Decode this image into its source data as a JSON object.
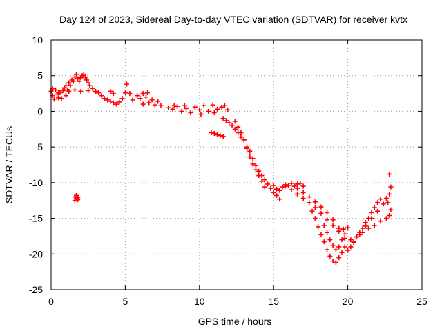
{
  "chart_data": {
    "type": "scatter",
    "title": "Day 124 of 2023, Sidereal Day-to-day VTEC variation (SDTVAR) for receiver kvtx",
    "xlabel": "GPS time / hours",
    "ylabel": "SDTVAR / TECUs",
    "xlim": [
      0,
      25
    ],
    "ylim": [
      -25,
      10
    ],
    "xticks": [
      0,
      5,
      10,
      15,
      20,
      25
    ],
    "yticks": [
      -25,
      -20,
      -15,
      -10,
      -5,
      0,
      5,
      10
    ],
    "xtick_labels": [
      "0",
      "5",
      "10",
      "15",
      "20",
      "25"
    ],
    "ytick_labels": [
      "-25",
      "-20",
      "-15",
      "-10",
      "-5",
      "0",
      "5",
      "10"
    ],
    "grid": true,
    "marker": "+",
    "color": "#ff0000",
    "series": [
      {
        "name": "SDTVAR",
        "points": [
          [
            0.0,
            2.8
          ],
          [
            0.1,
            2.2
          ],
          [
            0.2,
            1.7
          ],
          [
            0.3,
            3.0
          ],
          [
            0.4,
            2.4
          ],
          [
            0.5,
            1.9
          ],
          [
            0.6,
            2.6
          ],
          [
            0.7,
            1.8
          ],
          [
            0.8,
            2.9
          ],
          [
            0.9,
            3.3
          ],
          [
            1.0,
            3.6
          ],
          [
            1.1,
            3.0
          ],
          [
            1.2,
            4.0
          ],
          [
            1.3,
            3.6
          ],
          [
            1.4,
            4.4
          ],
          [
            1.5,
            4.2
          ],
          [
            1.6,
            4.8
          ],
          [
            1.7,
            5.2
          ],
          [
            1.8,
            4.6
          ],
          [
            1.9,
            4.2
          ],
          [
            2.0,
            4.7
          ],
          [
            2.1,
            5.0
          ],
          [
            2.2,
            5.2
          ],
          [
            2.3,
            4.8
          ],
          [
            2.4,
            4.4
          ],
          [
            2.5,
            4.0
          ],
          [
            2.6,
            3.6
          ],
          [
            2.8,
            3.2
          ],
          [
            3.0,
            2.8
          ],
          [
            3.2,
            2.6
          ],
          [
            3.4,
            2.2
          ],
          [
            3.6,
            1.8
          ],
          [
            3.8,
            1.6
          ],
          [
            4.0,
            1.4
          ],
          [
            4.2,
            1.2
          ],
          [
            4.4,
            1.0
          ],
          [
            4.6,
            1.3
          ],
          [
            4.8,
            1.8
          ],
          [
            5.0,
            2.6
          ],
          [
            5.1,
            3.8
          ],
          [
            5.3,
            2.5
          ],
          [
            5.5,
            1.6
          ],
          [
            5.8,
            2.2
          ],
          [
            6.0,
            1.8
          ],
          [
            6.2,
            2.5
          ],
          [
            6.4,
            2.0
          ],
          [
            6.6,
            1.2
          ],
          [
            6.8,
            1.6
          ],
          [
            7.0,
            0.9
          ],
          [
            7.2,
            1.4
          ],
          [
            7.4,
            0.8
          ],
          [
            2.0,
            2.8
          ],
          [
            2.5,
            2.9
          ],
          [
            3.0,
            2.7
          ],
          [
            4.0,
            2.8
          ],
          [
            4.2,
            2.5
          ],
          [
            0.1,
            3.2
          ],
          [
            0.5,
            2.6
          ],
          [
            1.0,
            2.2
          ],
          [
            1.2,
            2.8
          ],
          [
            1.6,
            3.0
          ],
          [
            6.5,
            2.6
          ],
          [
            6.2,
            1.0
          ],
          [
            7.9,
            0.5
          ],
          [
            8.2,
            0.3
          ],
          [
            8.5,
            0.7
          ],
          [
            8.8,
            0.0
          ],
          [
            9.1,
            0.4
          ],
          [
            9.4,
            -0.2
          ],
          [
            9.7,
            0.6
          ],
          [
            10.0,
            0.2
          ],
          [
            10.3,
            0.8
          ],
          [
            10.6,
            0.0
          ],
          [
            10.9,
            0.9
          ],
          [
            11.2,
            0.3
          ],
          [
            11.5,
            0.6
          ],
          [
            11.7,
            0.8
          ],
          [
            11.9,
            0.2
          ],
          [
            8.3,
            0.8
          ],
          [
            9.0,
            0.8
          ],
          [
            10.1,
            -0.4
          ],
          [
            11.0,
            -0.2
          ],
          [
            10.8,
            -3.0
          ],
          [
            11.0,
            -3.1
          ],
          [
            11.2,
            -3.3
          ],
          [
            11.4,
            -3.4
          ],
          [
            11.6,
            -3.5
          ],
          [
            11.6,
            -1.0
          ],
          [
            11.8,
            -1.3
          ],
          [
            12.0,
            -1.6
          ],
          [
            12.2,
            -2.0
          ],
          [
            12.4,
            -2.5
          ],
          [
            12.6,
            -3.0
          ],
          [
            12.8,
            -3.6
          ],
          [
            13.0,
            -4.0
          ],
          [
            13.2,
            -5.0
          ],
          [
            13.4,
            -5.6
          ],
          [
            13.6,
            -6.6
          ],
          [
            13.8,
            -7.6
          ],
          [
            14.0,
            -8.4
          ],
          [
            14.2,
            -9.0
          ],
          [
            14.4,
            -9.6
          ],
          [
            14.6,
            -10.2
          ],
          [
            14.8,
            -10.8
          ],
          [
            15.0,
            -11.4
          ],
          [
            15.2,
            -11.8
          ],
          [
            15.4,
            -12.3
          ],
          [
            12.4,
            -1.4
          ],
          [
            12.6,
            -2.2
          ],
          [
            12.8,
            -3.0
          ],
          [
            13.0,
            -4.0
          ],
          [
            13.2,
            -5.2
          ],
          [
            13.4,
            -6.4
          ],
          [
            13.6,
            -7.4
          ],
          [
            13.8,
            -8.2
          ],
          [
            14.0,
            -9.0
          ],
          [
            14.2,
            -9.8
          ],
          [
            14.4,
            -10.6
          ],
          [
            15.0,
            -10.4
          ],
          [
            15.2,
            -10.9
          ],
          [
            15.4,
            -11.1
          ],
          [
            15.6,
            -10.6
          ],
          [
            15.8,
            -10.3
          ],
          [
            16.0,
            -10.4
          ],
          [
            16.2,
            -10.1
          ],
          [
            16.4,
            -10.5
          ],
          [
            16.6,
            -10.2
          ],
          [
            16.8,
            -10.1
          ],
          [
            17.0,
            -10.5
          ],
          [
            15.8,
            -10.5
          ],
          [
            16.2,
            -11.0
          ],
          [
            16.6,
            -11.6
          ],
          [
            17.0,
            -12.2
          ],
          [
            17.4,
            -12.8
          ],
          [
            17.8,
            -13.5
          ],
          [
            18.2,
            -14.3
          ],
          [
            18.6,
            -15.2
          ],
          [
            19.0,
            -16.0
          ],
          [
            19.4,
            -16.8
          ],
          [
            19.8,
            -17.2
          ],
          [
            16.6,
            -10.8
          ],
          [
            17.0,
            -11.4
          ],
          [
            17.4,
            -12.0
          ],
          [
            17.8,
            -12.7
          ],
          [
            18.2,
            -13.4
          ],
          [
            18.6,
            -14.2
          ],
          [
            19.0,
            -15.2
          ],
          [
            19.4,
            -16.4
          ],
          [
            19.8,
            -17.8
          ],
          [
            17.6,
            -14.0
          ],
          [
            17.8,
            -15.0
          ],
          [
            18.0,
            -16.2
          ],
          [
            18.2,
            -17.3
          ],
          [
            18.4,
            -18.3
          ],
          [
            18.6,
            -19.4
          ],
          [
            18.8,
            -20.3
          ],
          [
            19.0,
            -21.0
          ],
          [
            19.2,
            -21.2
          ],
          [
            19.4,
            -20.5
          ],
          [
            19.6,
            -19.8
          ],
          [
            19.8,
            -19.0
          ],
          [
            18.4,
            -16.0
          ],
          [
            18.6,
            -17.0
          ],
          [
            18.8,
            -18.0
          ],
          [
            19.0,
            -18.8
          ],
          [
            19.2,
            -19.4
          ],
          [
            19.4,
            -19.0
          ],
          [
            19.6,
            -18.0
          ],
          [
            19.7,
            -16.5
          ],
          [
            20.0,
            -19.5
          ],
          [
            20.2,
            -19.0
          ],
          [
            20.4,
            -18.3
          ],
          [
            20.6,
            -17.6
          ],
          [
            20.8,
            -17.0
          ],
          [
            21.0,
            -16.4
          ],
          [
            21.2,
            -15.6
          ],
          [
            21.4,
            -15.0
          ],
          [
            21.6,
            -14.2
          ],
          [
            21.8,
            -13.5
          ],
          [
            22.0,
            -12.8
          ],
          [
            22.2,
            -12.3
          ],
          [
            20.2,
            -18.0
          ],
          [
            20.6,
            -17.6
          ],
          [
            21.0,
            -17.0
          ],
          [
            21.4,
            -16.4
          ],
          [
            21.8,
            -16.0
          ],
          [
            22.2,
            -15.4
          ],
          [
            22.6,
            -15.0
          ],
          [
            22.8,
            -14.6
          ],
          [
            20.4,
            -18.4
          ],
          [
            20.8,
            -17.3
          ],
          [
            21.2,
            -16.1
          ],
          [
            21.6,
            -15.0
          ],
          [
            22.0,
            -14.0
          ],
          [
            22.4,
            -13.0
          ],
          [
            22.6,
            -12.2
          ],
          [
            22.8,
            -11.6
          ],
          [
            22.9,
            -10.6
          ],
          [
            22.7,
            -12.8
          ],
          [
            22.9,
            -13.8
          ],
          [
            22.8,
            -8.8
          ],
          [
            20.0,
            -16.3
          ],
          [
            19.7,
            -16.6
          ],
          [
            1.6,
            -12.0
          ],
          [
            1.7,
            -12.2
          ],
          [
            1.8,
            -12.4
          ],
          [
            1.7,
            -11.8
          ],
          [
            1.6,
            -12.5
          ],
          [
            1.8,
            -12.1
          ]
        ]
      }
    ]
  }
}
